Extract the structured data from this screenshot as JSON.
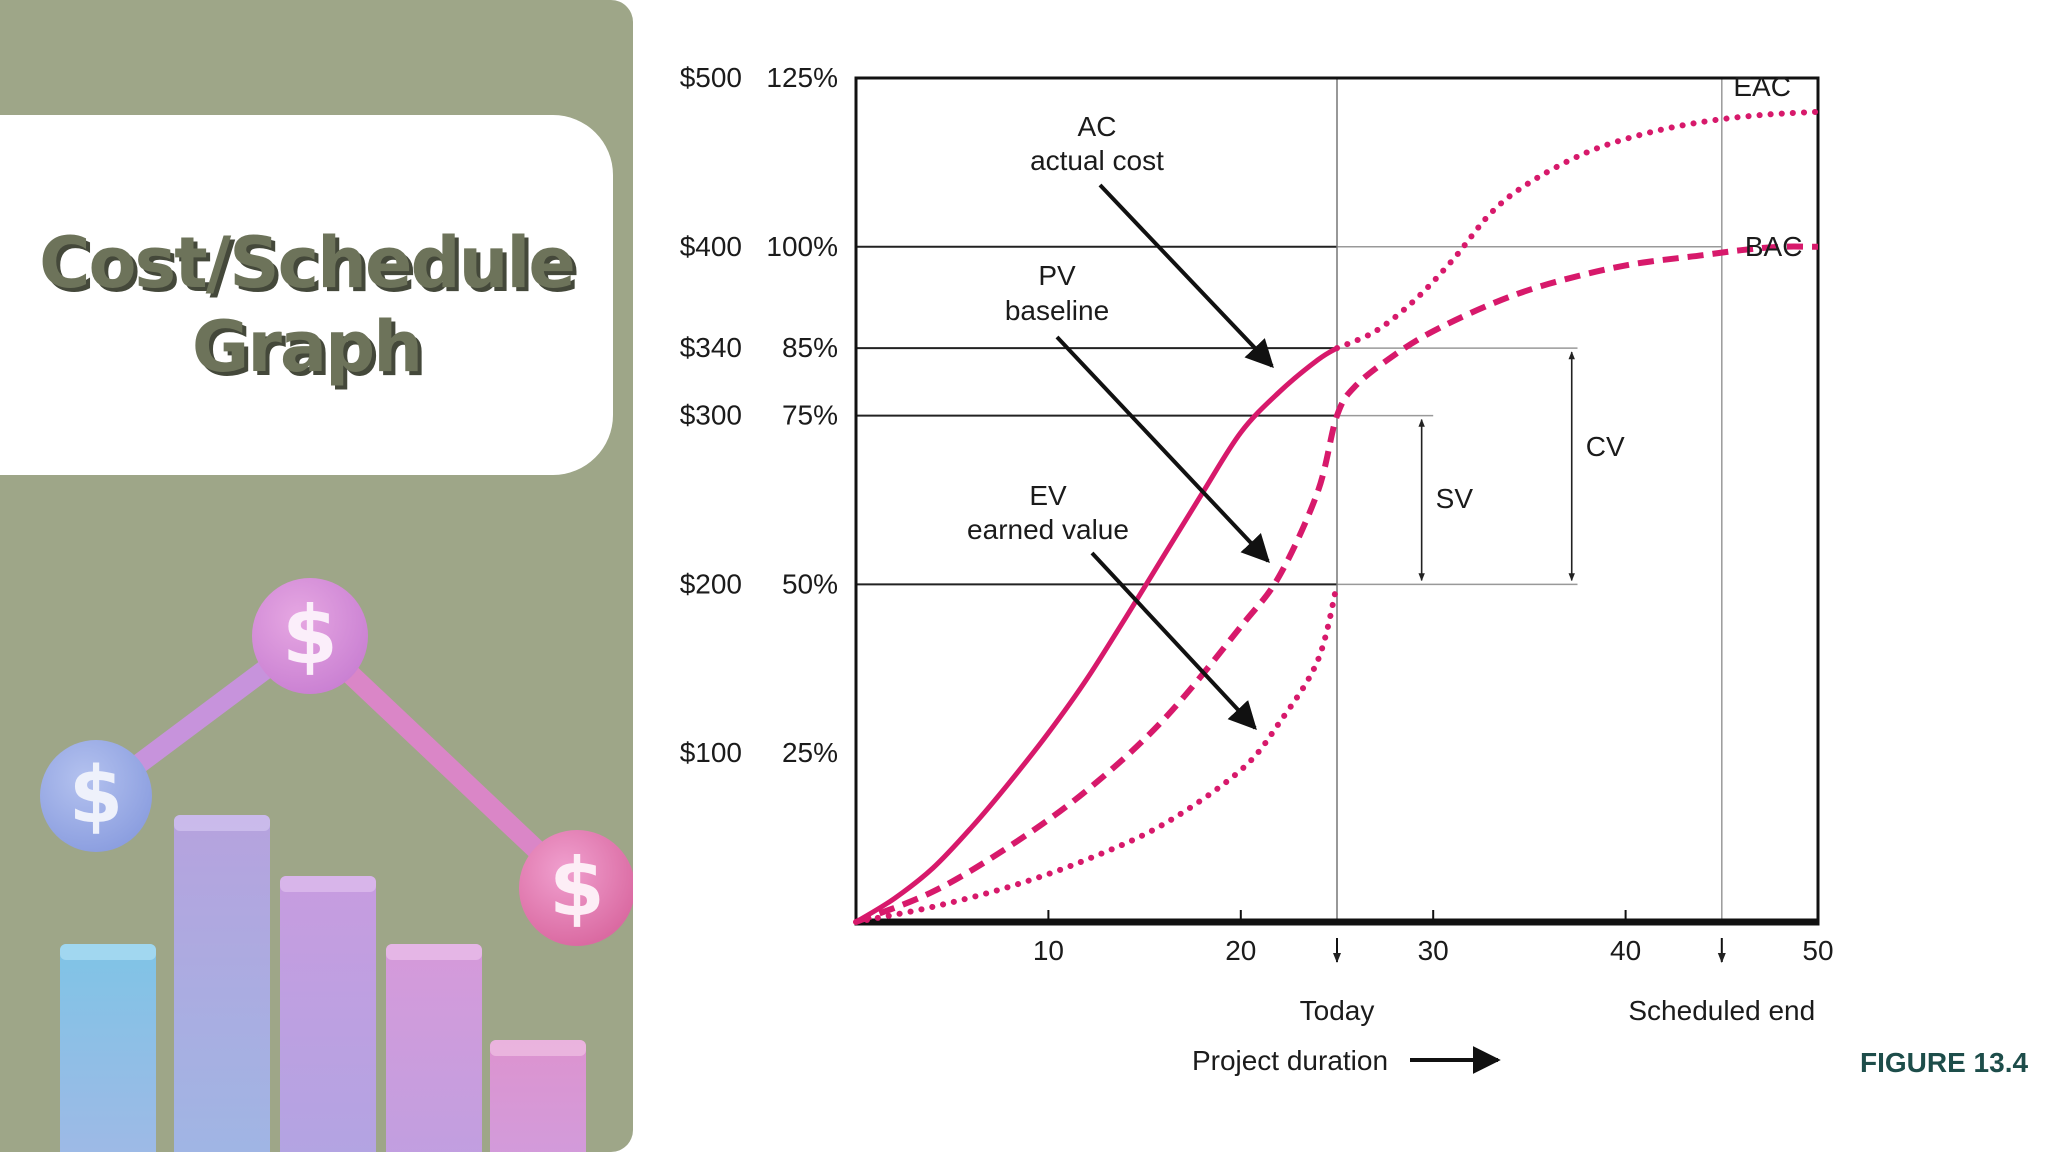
{
  "slide": {
    "title_line1": "Cost/Schedule",
    "title_line2": "Graph",
    "figure_label": "FIGURE 13.4",
    "colors": {
      "panel": "#9ea688",
      "title": "#6d735a",
      "curve": "#d7196b",
      "figure_label": "#1d4d4a"
    },
    "illustration": {
      "coin_symbol": "$",
      "icon": "dollar-bar-chart-illustration"
    }
  },
  "chart_data": {
    "type": "line",
    "x_ticks": [
      10,
      20,
      30,
      40,
      50
    ],
    "xlim": [
      0,
      50
    ],
    "y_ticks": [
      {
        "value": 100,
        "dollar": "$100",
        "percent": "25%"
      },
      {
        "value": 200,
        "dollar": "$200",
        "percent": "50%"
      },
      {
        "value": 300,
        "dollar": "$300",
        "percent": "75%"
      },
      {
        "value": 340,
        "dollar": "$340",
        "percent": "85%"
      },
      {
        "value": 400,
        "dollar": "$400",
        "percent": "100%"
      },
      {
        "value": 500,
        "dollar": "$500",
        "percent": "125%"
      }
    ],
    "ylim": [
      0,
      500
    ],
    "series": [
      {
        "label": "AC",
        "style": "solid",
        "x": [
          0,
          2,
          4,
          6,
          8,
          10,
          12,
          14,
          16,
          18,
          20,
          22,
          24,
          25
        ],
        "y": [
          0,
          14,
          32,
          56,
          83,
          112,
          144,
          180,
          217,
          254,
          290,
          314,
          333,
          340
        ]
      },
      {
        "label": "PV",
        "style": "dashed",
        "x": [
          0,
          4,
          8,
          12,
          16,
          20,
          22,
          24,
          25,
          26,
          28,
          30,
          33,
          36,
          40,
          44,
          46,
          48,
          50
        ],
        "y": [
          0,
          18,
          45,
          78,
          120,
          175,
          205,
          255,
          300,
          318,
          336,
          350,
          366,
          378,
          389,
          395,
          398,
          400,
          400
        ]
      },
      {
        "label": "EV",
        "style": "dotted",
        "x": [
          0,
          4,
          8,
          12,
          16,
          20,
          22,
          24,
          25
        ],
        "y": [
          0,
          9,
          21,
          37,
          58,
          90,
          118,
          155,
          200
        ]
      },
      {
        "label": "EAC",
        "style": "dotted",
        "x": [
          25,
          27,
          29,
          31,
          33,
          35,
          38,
          41,
          44,
          47,
          50
        ],
        "y": [
          340,
          350,
          368,
          392,
          420,
          438,
          456,
          467,
          474,
          478,
          480
        ]
      }
    ],
    "annotations": {
      "ac_name": "AC",
      "ac_desc": "actual cost",
      "pv_name": "PV",
      "pv_desc": "baseline",
      "ev_name": "EV",
      "ev_desc": "earned value",
      "eac": "EAC",
      "bac": "BAC",
      "sv": "SV",
      "cv": "CV",
      "today": "Today",
      "scheduled_end": "Scheduled end",
      "xlabel": "Project duration"
    },
    "today_x": 25,
    "scheduled_end_x": 45
  }
}
